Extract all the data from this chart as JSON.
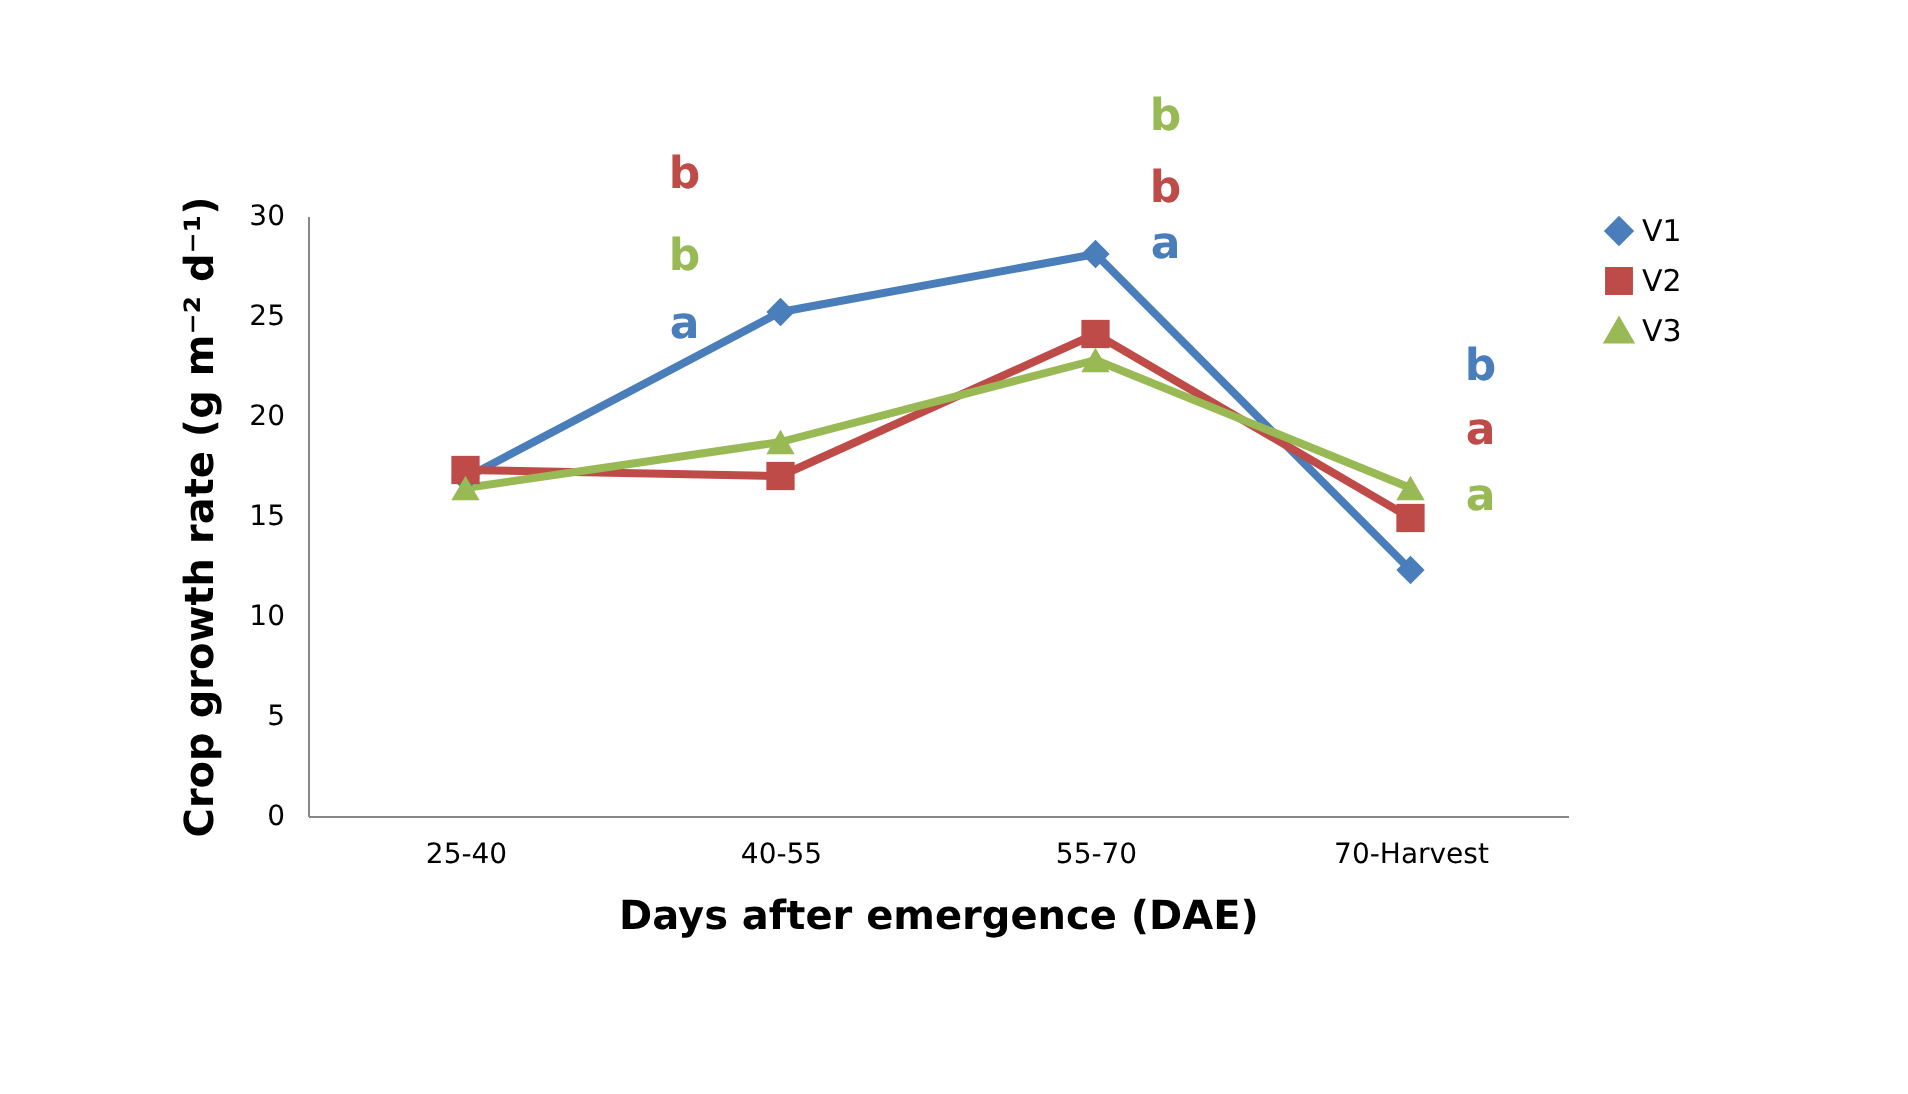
{
  "chart_data": {
    "type": "line",
    "xlabel": "Days after emergence (DAE)",
    "ylabel": "Crop growth rate (g m⁻² d⁻¹)",
    "categories": [
      "25-40",
      "40-55",
      "55-70",
      "70-Harvest"
    ],
    "series": [
      {
        "name": "V1",
        "color": "#4a7ebb",
        "marker": "diamond",
        "values": [
          16.9,
          25.2,
          28.1,
          12.3
        ]
      },
      {
        "name": "V2",
        "color": "#be4b48",
        "marker": "square",
        "values": [
          17.3,
          17.0,
          24.1,
          14.9
        ]
      },
      {
        "name": "V3",
        "color": "#98b954",
        "marker": "triangle",
        "values": [
          16.4,
          18.7,
          22.8,
          16.4
        ]
      }
    ],
    "ylim": [
      0,
      30
    ],
    "yticks": [
      0,
      5,
      10,
      15,
      20,
      25,
      30
    ],
    "grid": false,
    "legend": "right",
    "annotations": [
      "b",
      "b",
      "a",
      "b",
      "b",
      "a",
      "b",
      "a",
      "a"
    ]
  }
}
